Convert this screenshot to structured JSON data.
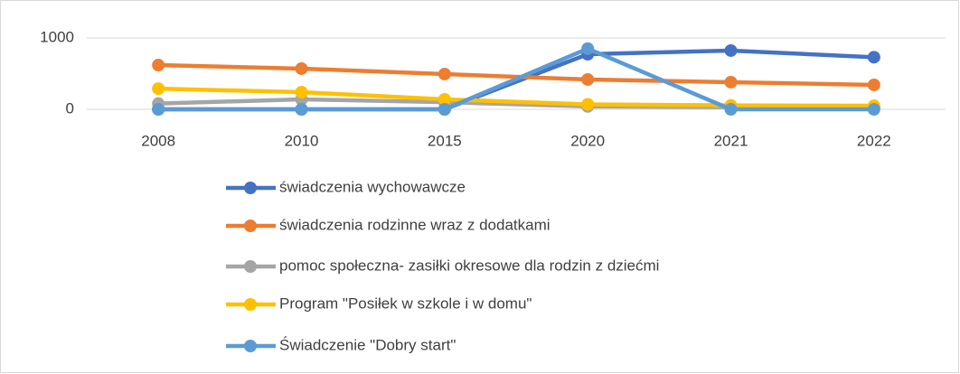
{
  "chart_data": {
    "type": "line",
    "categories": [
      "2008",
      "2010",
      "2015",
      "2020",
      "2021",
      "2022"
    ],
    "series": [
      {
        "name": "świadczenia wychowawcze",
        "color": "#4472c4",
        "values": [
          0,
          0,
          0,
          772,
          823,
          730
        ]
      },
      {
        "name": "świadczenia rodzinne wraz z dodatkami",
        "color": "#ed7d31",
        "values": [
          620,
          570,
          494,
          418,
          380,
          342
        ]
      },
      {
        "name": "pomoc społeczna- zasiłki okresowe dla rodzin z dziećmi",
        "color": "#a5a5a5",
        "values": [
          80,
          140,
          100,
          40,
          30,
          25
        ]
      },
      {
        "name": "Program \"Posiłek w szkole i w domu\"",
        "color": "#ffc000",
        "values": [
          290,
          240,
          140,
          70,
          55,
          50
        ]
      },
      {
        "name": "Świadczenie \"Dobry start\"",
        "color": "#5b9bd5",
        "values": [
          0,
          0,
          0,
          850,
          0,
          0
        ]
      }
    ],
    "ylim": [
      0,
      1000
    ],
    "yticks": [
      0,
      1000
    ],
    "grid": true,
    "legend": "bottom"
  }
}
